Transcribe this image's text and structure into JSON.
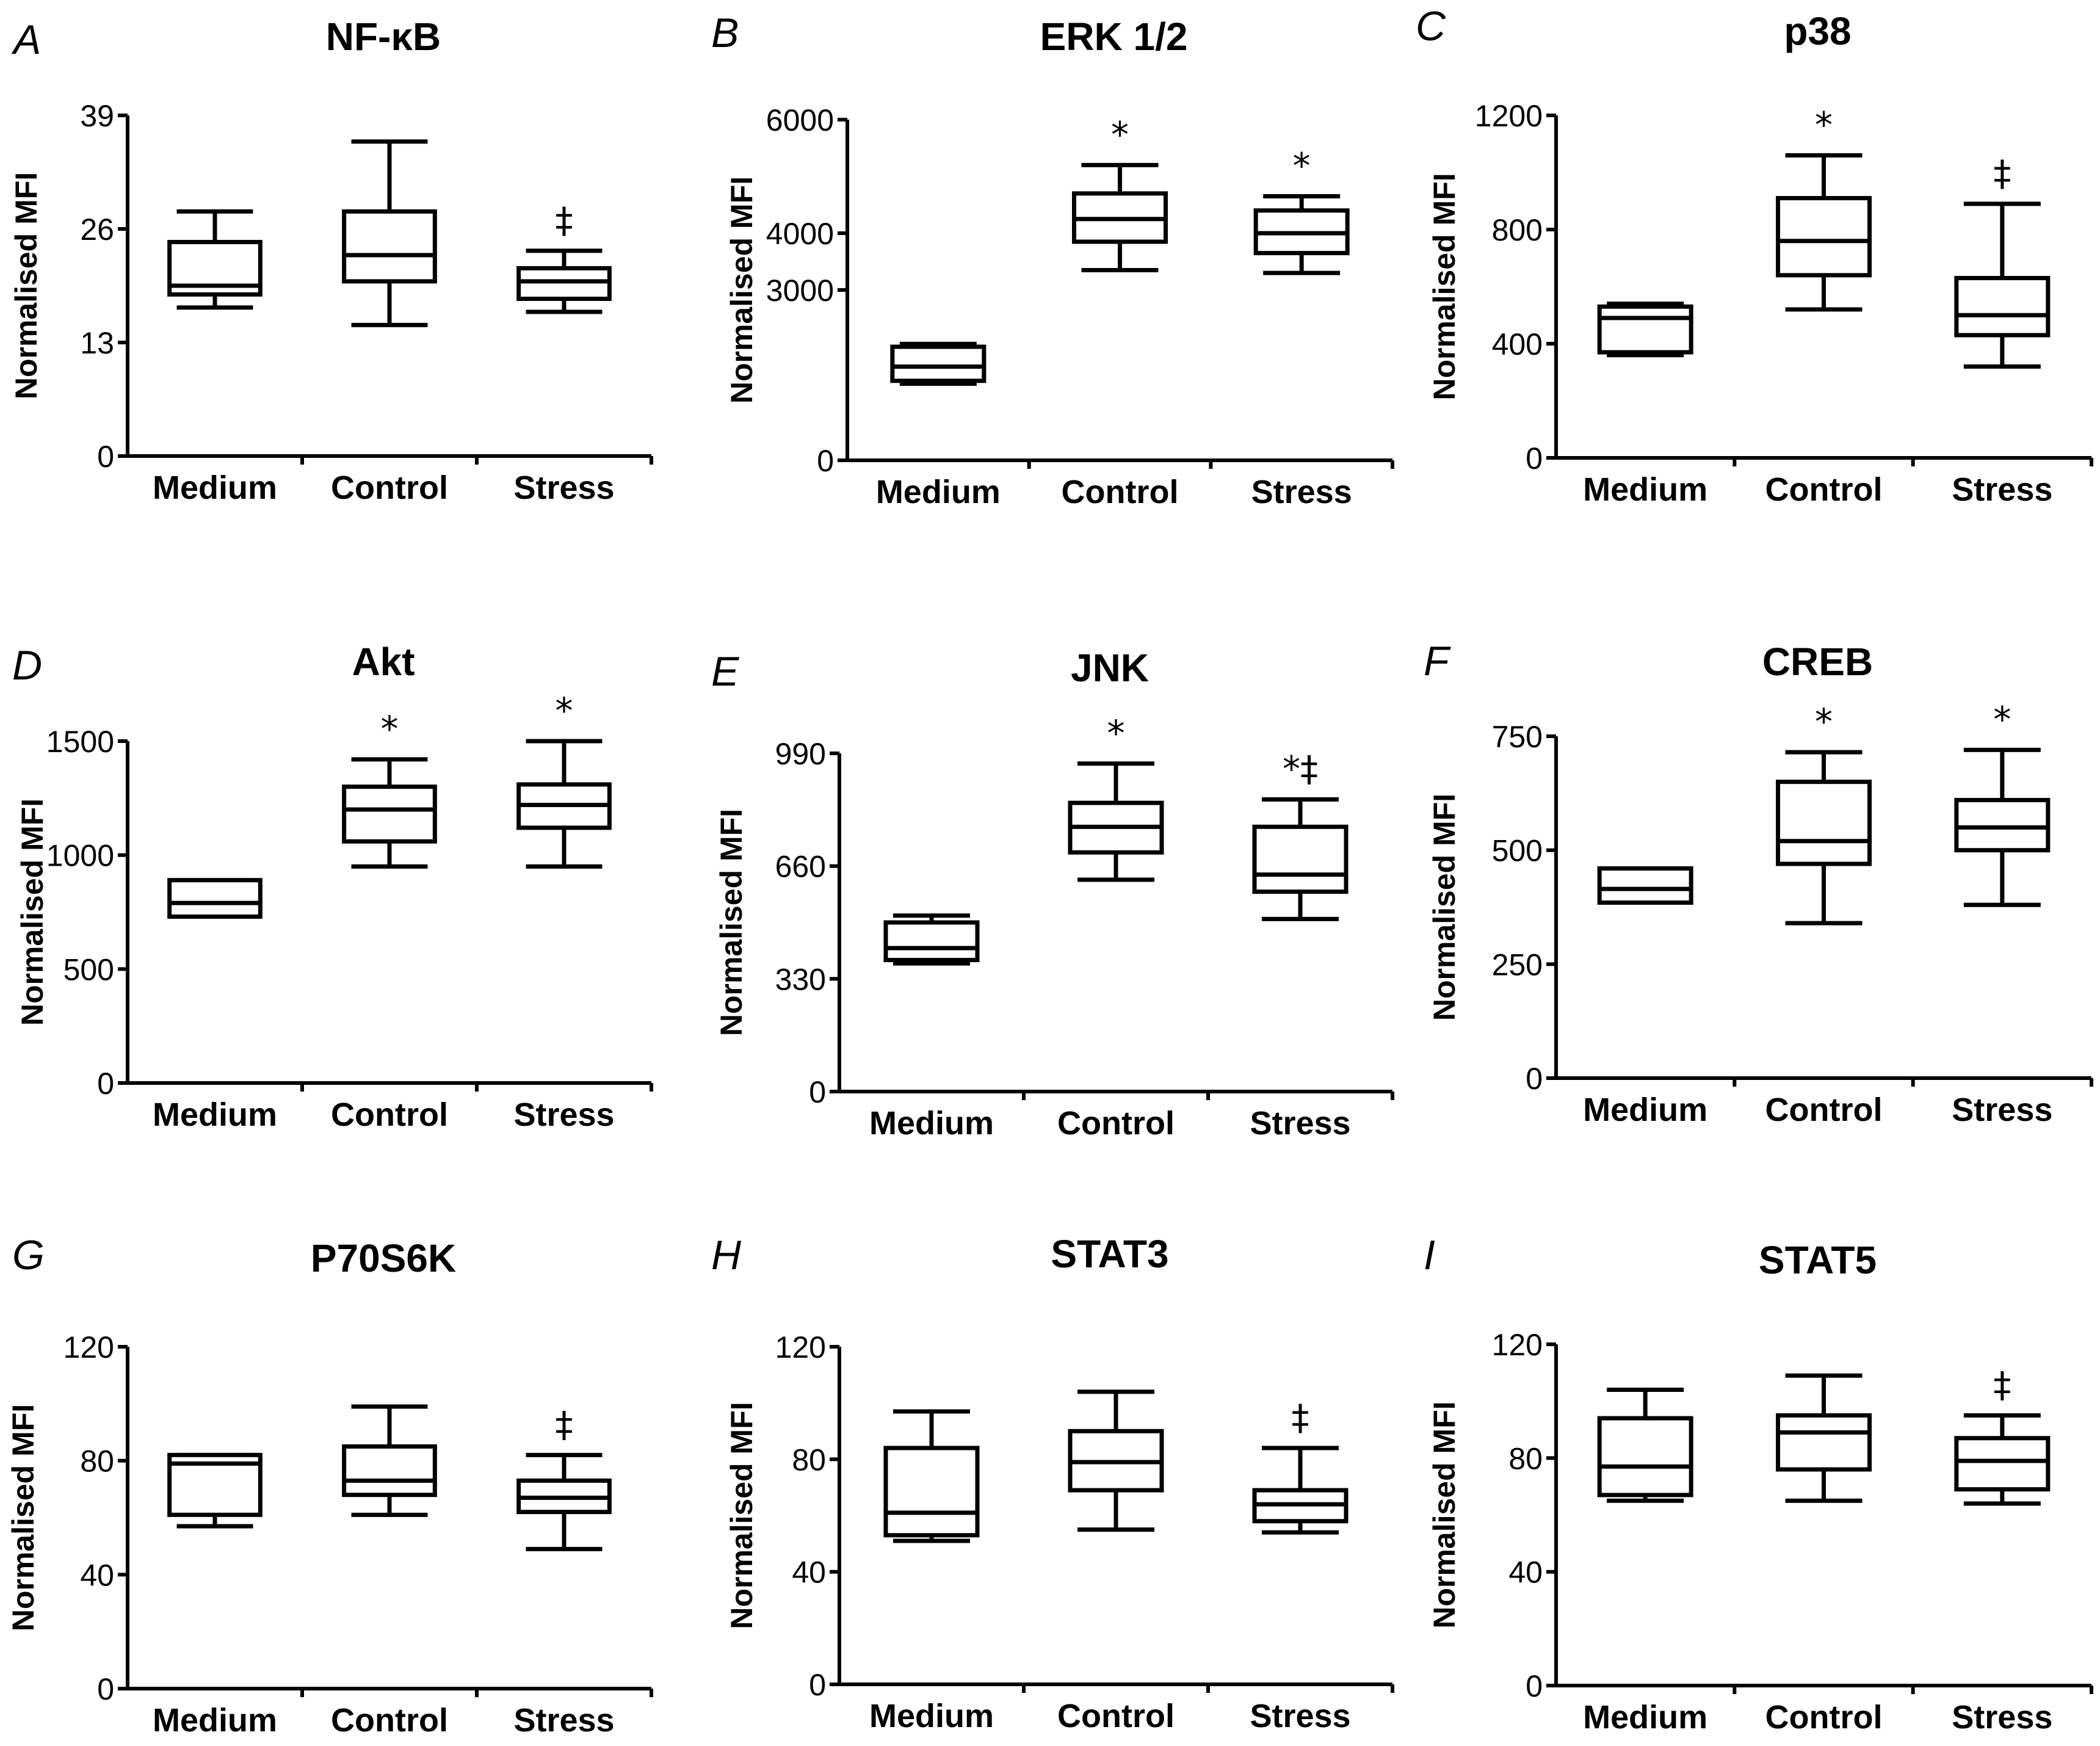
{
  "chart_data": [
    {
      "panel": "A",
      "type": "box",
      "title": "NF-κB",
      "ylabel": "Normalised MFI",
      "ylim": [
        0,
        39
      ],
      "yticks": [
        "0",
        "13",
        "26",
        "39"
      ],
      "categories": [
        "Medium",
        "Control",
        "Stress"
      ],
      "boxes": [
        {
          "category": "Medium",
          "min": 17,
          "q1": 18.5,
          "median": 19.5,
          "q3": 24.5,
          "max": 28,
          "annotation": ""
        },
        {
          "category": "Control",
          "min": 15,
          "q1": 20,
          "median": 23,
          "q3": 28,
          "max": 36,
          "annotation": ""
        },
        {
          "category": "Stress",
          "min": 16.5,
          "q1": 18,
          "median": 20,
          "q3": 21.5,
          "max": 23.5,
          "annotation": "‡"
        }
      ]
    },
    {
      "panel": "B",
      "type": "box",
      "title": "ERK 1/2",
      "ylabel": "Normalised MFI",
      "ylim": [
        0,
        6000
      ],
      "yticks": [
        "0",
        "3000",
        "4000",
        "6000"
      ],
      "categories": [
        "Medium",
        "Control",
        "Stress"
      ],
      "boxes": [
        {
          "category": "Medium",
          "min": 1350,
          "q1": 1400,
          "median": 1650,
          "q3": 2000,
          "max": 2050,
          "annotation": ""
        },
        {
          "category": "Control",
          "min": 3350,
          "q1": 3850,
          "median": 4250,
          "q3": 4700,
          "max": 5200,
          "annotation": "*"
        },
        {
          "category": "Stress",
          "min": 3300,
          "q1": 3650,
          "median": 4000,
          "q3": 4400,
          "max": 4650,
          "annotation": "*"
        }
      ]
    },
    {
      "panel": "C",
      "type": "box",
      "title": "p38",
      "ylabel": "Normalised MFI",
      "ylim": [
        0,
        1200
      ],
      "yticks": [
        "0",
        "400",
        "800",
        "1200"
      ],
      "categories": [
        "Medium",
        "Control",
        "Stress"
      ],
      "boxes": [
        {
          "category": "Medium",
          "min": 360,
          "q1": 370,
          "median": 490,
          "q3": 530,
          "max": 540,
          "annotation": ""
        },
        {
          "category": "Control",
          "min": 520,
          "q1": 640,
          "median": 760,
          "q3": 910,
          "max": 1060,
          "annotation": "*"
        },
        {
          "category": "Stress",
          "min": 320,
          "q1": 430,
          "median": 500,
          "q3": 630,
          "max": 890,
          "annotation": "‡"
        }
      ]
    },
    {
      "panel": "D",
      "type": "box",
      "title": "Akt",
      "ylabel": "Normalised MFI",
      "ylim": [
        0,
        1500
      ],
      "yticks": [
        "0",
        "500",
        "1000",
        "1500"
      ],
      "categories": [
        "Medium",
        "Control",
        "Stress"
      ],
      "boxes": [
        {
          "category": "Medium",
          "min": 730,
          "q1": 730,
          "median": 790,
          "q3": 890,
          "max": 890,
          "annotation": ""
        },
        {
          "category": "Control",
          "min": 950,
          "q1": 1060,
          "median": 1200,
          "q3": 1300,
          "max": 1420,
          "annotation": "*"
        },
        {
          "category": "Stress",
          "min": 950,
          "q1": 1120,
          "median": 1220,
          "q3": 1310,
          "max": 1500,
          "annotation": "*"
        }
      ]
    },
    {
      "panel": "E",
      "type": "box",
      "title": "JNK",
      "ylabel": "Normalised MFI",
      "ylim": [
        0,
        990
      ],
      "yticks": [
        "0",
        "330",
        "660",
        "990"
      ],
      "categories": [
        "Medium",
        "Control",
        "Stress"
      ],
      "boxes": [
        {
          "category": "Medium",
          "min": 375,
          "q1": 385,
          "median": 420,
          "q3": 495,
          "max": 515,
          "annotation": ""
        },
        {
          "category": "Control",
          "min": 620,
          "q1": 700,
          "median": 775,
          "q3": 845,
          "max": 960,
          "annotation": "*"
        },
        {
          "category": "Stress",
          "min": 505,
          "q1": 585,
          "median": 635,
          "q3": 775,
          "max": 855,
          "annotation": "*‡"
        }
      ]
    },
    {
      "panel": "F",
      "type": "box",
      "title": "CREB",
      "ylabel": "Normalised MFI",
      "ylim": [
        0,
        750
      ],
      "yticks": [
        "0",
        "250",
        "500",
        "750"
      ],
      "categories": [
        "Medium",
        "Control",
        "Stress"
      ],
      "boxes": [
        {
          "category": "Medium",
          "min": 385,
          "q1": 385,
          "median": 415,
          "q3": 460,
          "max": 460,
          "annotation": ""
        },
        {
          "category": "Control",
          "min": 340,
          "q1": 470,
          "median": 520,
          "q3": 650,
          "max": 715,
          "annotation": "*"
        },
        {
          "category": "Stress",
          "min": 380,
          "q1": 500,
          "median": 550,
          "q3": 610,
          "max": 720,
          "annotation": "*"
        }
      ]
    },
    {
      "panel": "G",
      "type": "box",
      "title": "P70S6K",
      "ylabel": "Normalised MFI",
      "ylim": [
        0,
        120
      ],
      "yticks": [
        "0",
        "40",
        "80",
        "120"
      ],
      "categories": [
        "Medium",
        "Control",
        "Stress"
      ],
      "boxes": [
        {
          "category": "Medium",
          "min": 57,
          "q1": 61,
          "median": 79,
          "q3": 82,
          "max": 82,
          "annotation": ""
        },
        {
          "category": "Control",
          "min": 61,
          "q1": 68,
          "median": 73,
          "q3": 85,
          "max": 99,
          "annotation": ""
        },
        {
          "category": "Stress",
          "min": 49,
          "q1": 62,
          "median": 67,
          "q3": 73,
          "max": 82,
          "annotation": "‡"
        }
      ]
    },
    {
      "panel": "H",
      "type": "box",
      "title": "STAT3",
      "ylabel": "Normalised MFI",
      "ylim": [
        0,
        120
      ],
      "yticks": [
        "0",
        "40",
        "80",
        "120"
      ],
      "categories": [
        "Medium",
        "Control",
        "Stress"
      ],
      "boxes": [
        {
          "category": "Medium",
          "min": 51,
          "q1": 53,
          "median": 61,
          "q3": 84,
          "max": 97,
          "annotation": ""
        },
        {
          "category": "Control",
          "min": 55,
          "q1": 69,
          "median": 79,
          "q3": 90,
          "max": 104,
          "annotation": ""
        },
        {
          "category": "Stress",
          "min": 54,
          "q1": 58,
          "median": 64,
          "q3": 69,
          "max": 84,
          "annotation": "‡"
        }
      ]
    },
    {
      "panel": "I",
      "type": "box",
      "title": "STAT5",
      "ylabel": "Normalised MFI",
      "ylim": [
        0,
        120
      ],
      "yticks": [
        "0",
        "40",
        "80",
        "120"
      ],
      "categories": [
        "Medium",
        "Control",
        "Stress"
      ],
      "boxes": [
        {
          "category": "Medium",
          "min": 65,
          "q1": 67,
          "median": 77,
          "q3": 94,
          "max": 104,
          "annotation": ""
        },
        {
          "category": "Control",
          "min": 65,
          "q1": 76,
          "median": 89,
          "q3": 95,
          "max": 109,
          "annotation": ""
        },
        {
          "category": "Stress",
          "min": 64,
          "q1": 69,
          "median": 79,
          "q3": 87,
          "max": 95,
          "annotation": "‡"
        }
      ]
    }
  ]
}
